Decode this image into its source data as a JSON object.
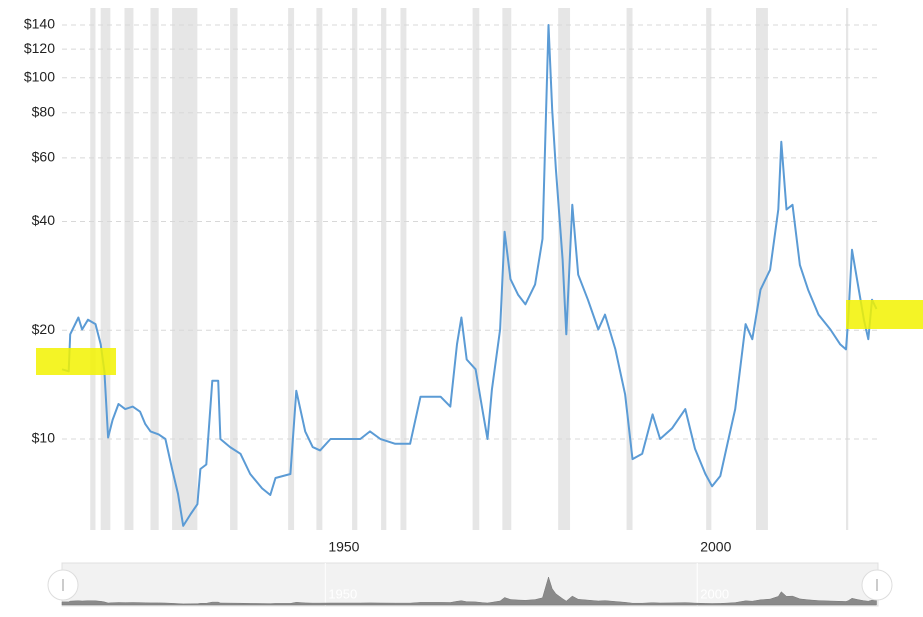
{
  "chart_data": {
    "type": "line",
    "log_scale": true,
    "grid": true,
    "x": [
      1914.6,
      1915.5,
      1915.7,
      1916.8,
      1917.3,
      1918.1,
      1919.1,
      1919.8,
      1920.3,
      1920.8,
      1921.4,
      1922.2,
      1923.1,
      1924.1,
      1925.1,
      1925.8,
      1926.5,
      1927.6,
      1928.5,
      1929.4,
      1930.2,
      1930.9,
      1931.9,
      1932.8,
      1933.2,
      1934.0,
      1934.8,
      1935.6,
      1935.9,
      1937.2,
      1938.6,
      1939.9,
      1941.5,
      1942.6,
      1943.3,
      1945.3,
      1946.1,
      1947.3,
      1948.3,
      1949.3,
      1950.7,
      1952.7,
      1954.7,
      1956.0,
      1957.4,
      1959.4,
      1961.4,
      1962.8,
      1965.5,
      1966.8,
      1967.7,
      1968.3,
      1969.0,
      1970.2,
      1971.1,
      1971.8,
      1972.4,
      1973.5,
      1974.1,
      1974.9,
      1975.9,
      1976.9,
      1978.2,
      1979.2,
      1980.0,
      1980.5,
      1981.0,
      1981.9,
      1982.4,
      1983.2,
      1984.0,
      1985.3,
      1986.7,
      1987.6,
      1989.0,
      1990.3,
      1991.3,
      1992.6,
      1994.0,
      1995.0,
      1996.6,
      1998.4,
      1999.7,
      2001.1,
      2002.0,
      2003.1,
      2004.2,
      2005.1,
      2006.5,
      2007.4,
      2008.5,
      2009.8,
      2010.9,
      2011.3,
      2012.0,
      2012.8,
      2013.8,
      2014.9,
      2016.3,
      2017.9,
      2019.2,
      2020.0,
      2020.3,
      2020.8,
      2021.6,
      2022.4,
      2023.0,
      2023.5,
      2024.1
    ],
    "series": [
      {
        "color": "#5b9bd5",
        "values": [
          15.6,
          15.4,
          19.5,
          21.7,
          20.1,
          21.4,
          20.8,
          18.3,
          15.4,
          10.1,
          11.3,
          12.5,
          12.1,
          12.3,
          11.9,
          11.0,
          10.5,
          10.3,
          10.0,
          8.26,
          7.05,
          5.75,
          6.2,
          6.6,
          8.26,
          8.5,
          14.5,
          14.5,
          10.0,
          9.5,
          9.1,
          8.0,
          7.3,
          7.0,
          7.8,
          8.0,
          13.6,
          10.5,
          9.5,
          9.3,
          10.0,
          10.0,
          10.0,
          10.5,
          10.0,
          9.7,
          9.7,
          13.1,
          13.1,
          12.3,
          18.3,
          21.7,
          16.6,
          15.6,
          12.1,
          10.0,
          13.7,
          20.1,
          37.5,
          27.7,
          25.1,
          23.6,
          26.8,
          35.8,
          140,
          81.5,
          55.8,
          31.4,
          19.5,
          44.5,
          28.5,
          24.3,
          20.1,
          22.1,
          17.7,
          13.3,
          8.8,
          9.1,
          11.7,
          10.0,
          10.7,
          12.1,
          9.4,
          8.0,
          7.4,
          7.9,
          10.0,
          12.1,
          20.8,
          18.9,
          25.9,
          29.4,
          43.2,
          66.5,
          43.2,
          44.5,
          30.3,
          25.9,
          22.1,
          20.1,
          18.3,
          17.7,
          21.4,
          33.4,
          26.8,
          21.4,
          18.9,
          24.3,
          22.9
        ]
      }
    ],
    "recessions": [
      [
        1918.4,
        1919.1
      ],
      [
        1919.8,
        1921.1
      ],
      [
        1923.0,
        1924.2
      ],
      [
        1926.5,
        1927.6
      ],
      [
        1929.4,
        1932.8
      ],
      [
        1937.2,
        1938.2
      ],
      [
        1945.0,
        1945.8
      ],
      [
        1948.8,
        1949.6
      ],
      [
        1953.6,
        1954.3
      ],
      [
        1957.5,
        1958.2
      ],
      [
        1960.1,
        1960.9
      ],
      [
        1969.8,
        1970.7
      ],
      [
        1973.8,
        1975.0
      ],
      [
        1981.3,
        1982.9
      ],
      [
        1990.5,
        1991.3
      ],
      [
        2001.2,
        2001.9
      ],
      [
        2007.9,
        2009.5
      ],
      [
        2020.0,
        2020.3
      ]
    ],
    "xlim": [
      1914.6,
      2024.3
    ],
    "xticks": [
      1950,
      2000
    ],
    "ylim": [
      5.6,
      156
    ],
    "yticks": [
      {
        "value": 10,
        "label": "$10"
      },
      {
        "value": 20,
        "label": "$20"
      },
      {
        "value": 40,
        "label": "$40"
      },
      {
        "value": 60,
        "label": "$60"
      },
      {
        "value": 80,
        "label": "$80"
      },
      {
        "value": 100,
        "label": "$100"
      },
      {
        "value": 120,
        "label": "$120"
      },
      {
        "value": 140,
        "label": "$140"
      }
    ]
  }
}
